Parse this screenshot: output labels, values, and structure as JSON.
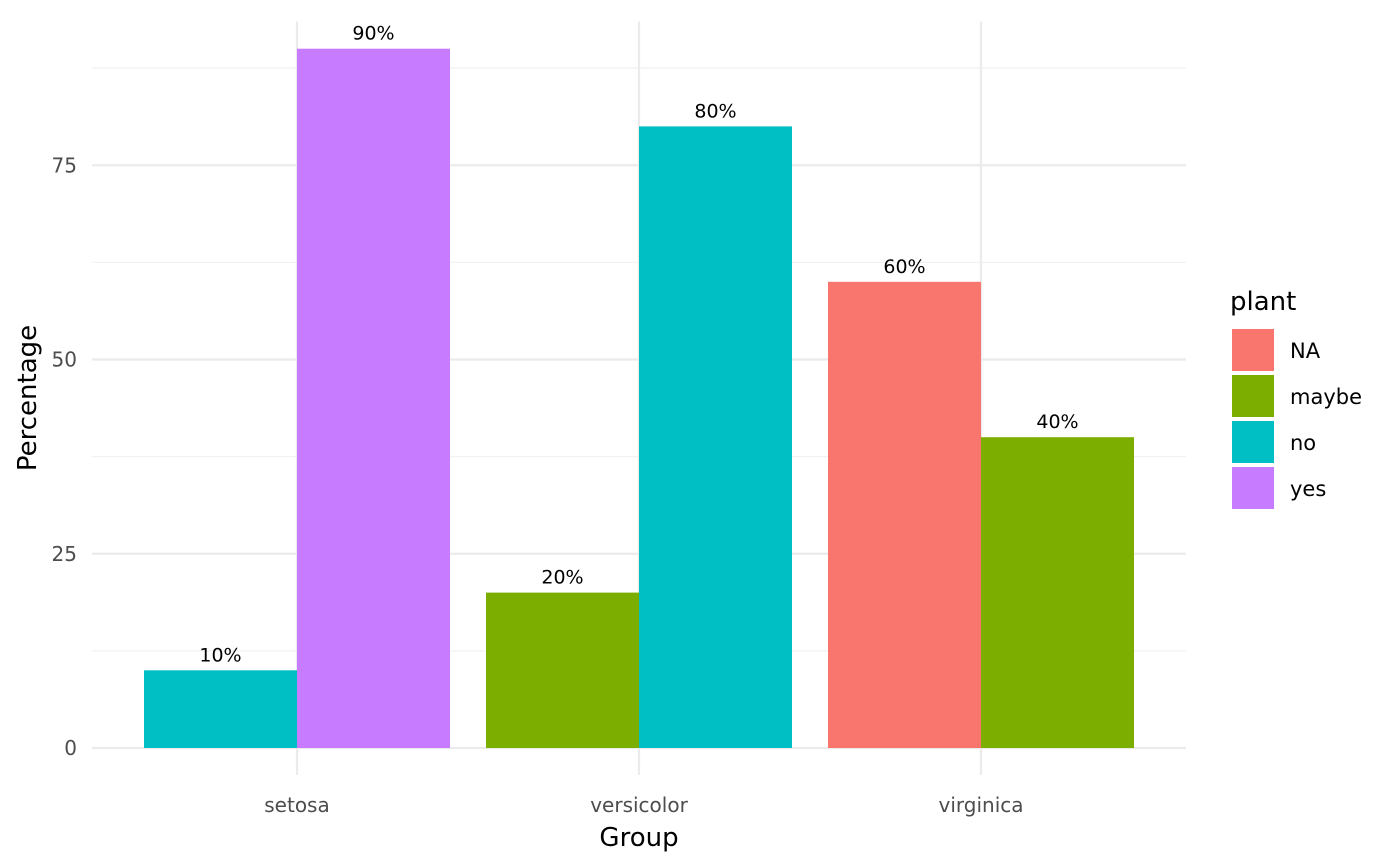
{
  "chart_data": {
    "type": "bar",
    "layout": "dodge",
    "xlabel": "Group",
    "ylabel": "Percentage",
    "ylim": [
      0,
      93.5
    ],
    "yticks": [
      0,
      25,
      50,
      75
    ],
    "grid": true,
    "legend_position": "right",
    "categories": [
      "setosa",
      "versicolor",
      "virginica"
    ],
    "legend": {
      "title": "plant",
      "entries": [
        {
          "name": "NA",
          "color": "#F8766D"
        },
        {
          "name": "maybe",
          "color": "#7CAE00"
        },
        {
          "name": "no",
          "color": "#00BFC4"
        },
        {
          "name": "yes",
          "color": "#C77CFF"
        }
      ]
    },
    "groups": [
      {
        "category": "setosa",
        "bars": [
          {
            "series": "no",
            "value": 10,
            "label": "10%"
          },
          {
            "series": "yes",
            "value": 90,
            "label": "90%"
          }
        ]
      },
      {
        "category": "versicolor",
        "bars": [
          {
            "series": "maybe",
            "value": 20,
            "label": "20%"
          },
          {
            "series": "no",
            "value": 80,
            "label": "80%"
          }
        ]
      },
      {
        "category": "virginica",
        "bars": [
          {
            "series": "NA",
            "value": 60,
            "label": "60%"
          },
          {
            "series": "maybe",
            "value": 40,
            "label": "40%"
          }
        ]
      }
    ]
  }
}
